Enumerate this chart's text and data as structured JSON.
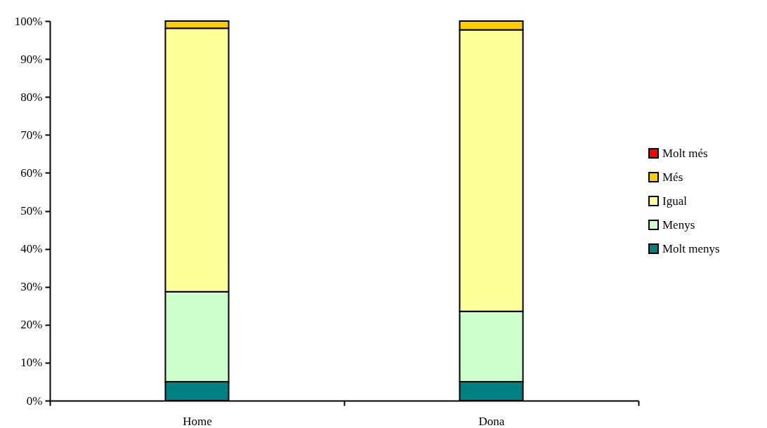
{
  "chart_data": {
    "type": "bar",
    "stacked": true,
    "categories": [
      "Home",
      "Dona"
    ],
    "series": [
      {
        "name": "Molt menys",
        "color": "#008080",
        "values": [
          5,
          5
        ]
      },
      {
        "name": "Menys",
        "color": "#ccffcc",
        "values": [
          23.7,
          18.5
        ]
      },
      {
        "name": "Igual",
        "color": "#ffff99",
        "values": [
          69.4,
          74.2
        ]
      },
      {
        "name": "Més",
        "color": "#ffcc00",
        "values": [
          1.9,
          2.3
        ]
      },
      {
        "name": "Molt més",
        "color": "#ff0000",
        "values": [
          0,
          0
        ]
      }
    ],
    "ylim": [
      0,
      100
    ],
    "yticks": [
      {
        "value": 0,
        "label": "0%"
      },
      {
        "value": 10,
        "label": "10%"
      },
      {
        "value": 20,
        "label": "20%"
      },
      {
        "value": 30,
        "label": "30%"
      },
      {
        "value": 40,
        "label": "40%"
      },
      {
        "value": 50,
        "label": "50%"
      },
      {
        "value": 60,
        "label": "60%"
      },
      {
        "value": 70,
        "label": "70%"
      },
      {
        "value": 80,
        "label": "80%"
      },
      {
        "value": 90,
        "label": "90%"
      },
      {
        "value": 100,
        "label": "100%"
      }
    ],
    "grid": false,
    "legend": "right"
  }
}
